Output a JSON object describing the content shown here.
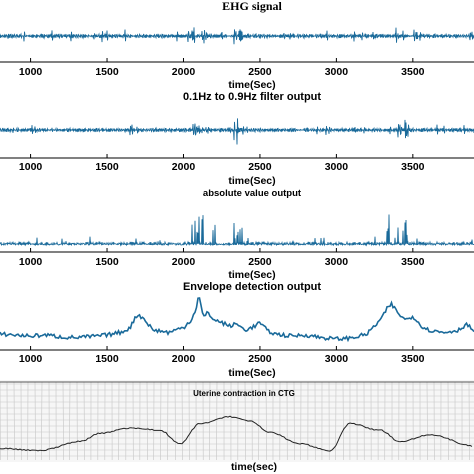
{
  "chart_data": [
    {
      "type": "line",
      "title": "EHG signal",
      "xlabel": "time(Sec)",
      "ylabel": "",
      "xlim": [
        800,
        3900
      ],
      "xticks": [
        1000,
        1500,
        2000,
        2500,
        3000,
        3500
      ],
      "grid": false,
      "color": "#1a6a9a",
      "bursts": [
        [
          2050,
          2180
        ],
        [
          2330,
          2420
        ],
        [
          3350,
          3450
        ]
      ],
      "series": [
        {
          "name": "",
          "x": [
            800,
            1000,
            1500,
            2000,
            2100,
            2500,
            3000,
            3400,
            3900
          ],
          "y": [
            0,
            0,
            0,
            0,
            1.0,
            0.5,
            0,
            0.7,
            0
          ]
        }
      ]
    },
    {
      "type": "line",
      "title": "0.1Hz to 0.9Hz filter output",
      "xlabel": "time(Sec)",
      "ylabel": "",
      "xlim": [
        800,
        3900
      ],
      "xticks": [
        1000,
        1500,
        2000,
        2500,
        3000,
        3500
      ],
      "grid": false,
      "color": "#1a6a9a",
      "bursts": [
        [
          2050,
          2200
        ],
        [
          2330,
          2420
        ],
        [
          3340,
          3470
        ]
      ],
      "series": [
        {
          "name": "",
          "x": [
            800,
            1000,
            1500,
            2000,
            2100,
            2500,
            3000,
            3400,
            3900
          ],
          "y": [
            0,
            0,
            0,
            0,
            1.0,
            0.5,
            0,
            0.8,
            0
          ]
        }
      ]
    },
    {
      "type": "line",
      "title": "absolute value output",
      "xlabel": "time(Sec)",
      "ylabel": "",
      "xlim": [
        800,
        3900
      ],
      "xticks": [
        1000,
        1500,
        2000,
        2500,
        3000,
        3500
      ],
      "grid": false,
      "color": "#1a6a9a",
      "bursts": [
        [
          2050,
          2220
        ],
        [
          2320,
          2430
        ],
        [
          3330,
          3480
        ]
      ],
      "series": [
        {
          "name": "",
          "x": [
            800,
            1000,
            1500,
            2000,
            2100,
            2500,
            3000,
            3400,
            3900
          ],
          "y": [
            0,
            0,
            0,
            0.2,
            1.0,
            0.5,
            0.1,
            0.9,
            0
          ]
        }
      ]
    },
    {
      "type": "line",
      "title": "Envelope detection output",
      "xlabel": "time(Sec)",
      "ylabel": "",
      "xlim": [
        800,
        3900
      ],
      "xticks": [
        1000,
        1500,
        2000,
        2500,
        3000,
        3500
      ],
      "grid": false,
      "color": "#1a6a9a",
      "series": [
        {
          "name": "",
          "x": [
            800,
            900,
            1000,
            1100,
            1200,
            1300,
            1400,
            1500,
            1600,
            1650,
            1700,
            1750,
            1800,
            1850,
            1900,
            1950,
            2000,
            2050,
            2080,
            2100,
            2130,
            2160,
            2200,
            2250,
            2300,
            2350,
            2400,
            2450,
            2500,
            2550,
            2600,
            2700,
            2800,
            2900,
            3000,
            3100,
            3200,
            3250,
            3300,
            3330,
            3360,
            3400,
            3450,
            3500,
            3550,
            3600,
            3700,
            3800,
            3850,
            3900
          ],
          "y": [
            0.22,
            0.2,
            0.18,
            0.2,
            0.16,
            0.15,
            0.17,
            0.2,
            0.26,
            0.35,
            0.62,
            0.5,
            0.3,
            0.28,
            0.25,
            0.3,
            0.35,
            0.5,
            0.7,
            1.0,
            0.55,
            0.65,
            0.5,
            0.45,
            0.38,
            0.42,
            0.3,
            0.35,
            0.45,
            0.28,
            0.22,
            0.18,
            0.2,
            0.15,
            0.12,
            0.14,
            0.22,
            0.38,
            0.55,
            0.72,
            0.82,
            0.65,
            0.5,
            0.58,
            0.4,
            0.3,
            0.25,
            0.3,
            0.42,
            0.28
          ]
        }
      ]
    },
    {
      "type": "line",
      "title": "Uterine contraction in CTG",
      "xlabel": "time(sec)",
      "ylabel": "",
      "grid": true,
      "color": "#222222",
      "series": [
        {
          "name": "",
          "x": [
            0,
            40,
            80,
            100,
            130,
            160,
            180,
            200,
            230,
            250,
            270,
            300,
            330,
            350,
            380,
            400,
            430,
            474
          ],
          "y": [
            0.15,
            0.1,
            0.3,
            0.48,
            0.6,
            0.55,
            0.25,
            0.7,
            0.85,
            0.75,
            0.5,
            0.25,
            0.1,
            0.7,
            0.55,
            0.3,
            0.45,
            0.2
          ]
        }
      ]
    }
  ]
}
